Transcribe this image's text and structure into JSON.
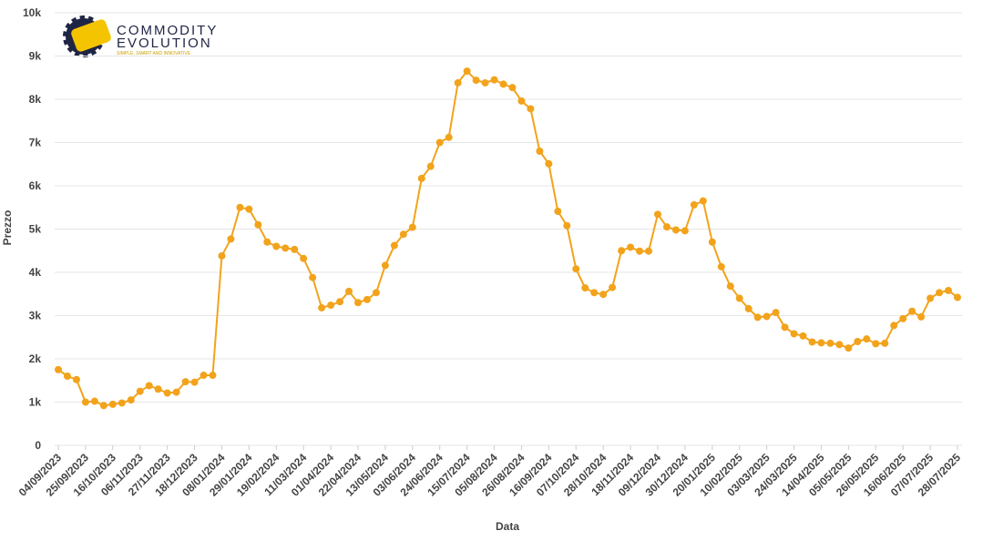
{
  "logo": {
    "line1": "COMMODITY",
    "line2": "EVOLUTION",
    "tagline": "SIMPLE, SMART AND INNOVATIVE"
  },
  "chart_data": {
    "type": "line",
    "x_label": "Data",
    "y_label": "Prezzo",
    "categories": [
      "04/09/2023",
      null,
      null,
      "25/09/2023",
      null,
      null,
      "16/10/2023",
      null,
      null,
      "06/11/2023",
      null,
      null,
      "27/11/2023",
      null,
      null,
      "18/12/2023",
      null,
      null,
      "08/01/2024",
      null,
      null,
      "29/01/2024",
      null,
      null,
      "19/02/2024",
      null,
      null,
      "11/03/2024",
      null,
      null,
      "01/04/2024",
      null,
      null,
      "22/04/2024",
      null,
      null,
      "13/05/2024",
      null,
      null,
      "03/06/2024",
      null,
      null,
      "24/06/2024",
      null,
      null,
      "15/07/2024",
      null,
      null,
      "05/08/2024",
      null,
      null,
      "26/08/2024",
      null,
      null,
      "16/09/2024",
      null,
      null,
      "07/10/2024",
      null,
      null,
      "28/10/2024",
      null,
      null,
      "18/11/2024",
      null,
      null,
      "09/12/2024",
      null,
      null,
      "30/12/2024",
      null,
      null,
      "20/01/2025",
      null,
      null,
      "10/02/2025",
      null,
      null,
      "03/03/2025",
      null,
      null,
      "24/03/2025",
      null,
      null,
      "14/04/2025",
      null,
      null,
      "05/05/2025",
      null,
      null,
      "26/05/2025",
      null,
      null,
      "16/06/2025",
      null,
      null,
      "07/07/2025",
      null,
      null,
      "28/07/2025"
    ],
    "series": [
      {
        "name": "Prezzo",
        "color": "#f2a31b",
        "values": [
          1750,
          1600,
          1520,
          1000,
          1020,
          920,
          950,
          980,
          1050,
          1250,
          1380,
          1300,
          1210,
          1230,
          1470,
          1460,
          1620,
          1620,
          4380,
          4770,
          5500,
          5460,
          5100,
          4700,
          4600,
          4560,
          4530,
          4320,
          3880,
          3180,
          3240,
          3320,
          3560,
          3300,
          3370,
          3530,
          4160,
          4620,
          4880,
          5040,
          6170,
          6450,
          7000,
          7120,
          8380,
          8650,
          8440,
          8380,
          8450,
          8350,
          8270,
          7960,
          7780,
          6800,
          6510,
          5410,
          5080,
          4080,
          3640,
          3530,
          3490,
          3650,
          4500,
          4580,
          4490,
          4490,
          5340,
          5050,
          4980,
          4960,
          5560,
          5650,
          4700,
          4130,
          3680,
          3400,
          3160,
          2960,
          2980,
          3070,
          2730,
          2580,
          2530,
          2390,
          2370,
          2360,
          2330,
          2250,
          2400,
          2460,
          2350,
          2360,
          2770,
          2930,
          3100,
          2970,
          3400,
          3530,
          3580,
          3420
        ]
      }
    ],
    "ylim": [
      0,
      10000
    ],
    "yticks": [
      0,
      {
        "value": 1000,
        "label": "1k"
      },
      {
        "value": 2000,
        "label": "2k"
      },
      {
        "value": 3000,
        "label": "3k"
      },
      {
        "value": 4000,
        "label": "4k"
      },
      {
        "value": 5000,
        "label": "5k"
      },
      {
        "value": 6000,
        "label": "6k"
      },
      {
        "value": 7000,
        "label": "7k"
      },
      {
        "value": 8000,
        "label": "8k"
      },
      {
        "value": 9000,
        "label": "9k"
      },
      {
        "value": 10000,
        "label": "10k"
      }
    ],
    "grid": true
  }
}
